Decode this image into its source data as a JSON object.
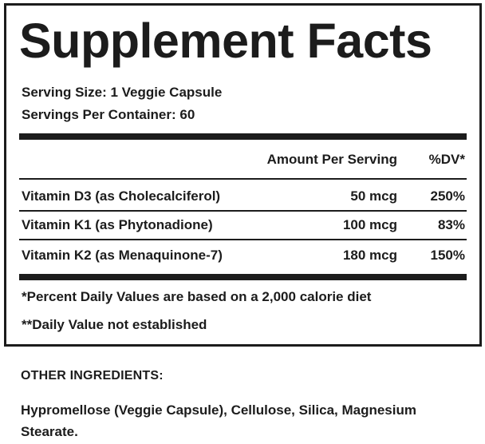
{
  "panel": {
    "title": "Supplement Facts",
    "serving_size": "Serving Size: 1 Veggie Capsule",
    "servings_per_container": "Servings Per Container: 60",
    "header": {
      "amount": "Amount Per Serving",
      "dv": "%DV*"
    },
    "rows": [
      {
        "name": "Vitamin D3 (as Cholecalciferol)",
        "amount": "50 mcg",
        "dv": "250%"
      },
      {
        "name": "Vitamin K1 (as Phytonadione)",
        "amount": "100 mcg",
        "dv": "83%"
      },
      {
        "name": "Vitamin K2 (as Menaquinone-7)",
        "amount": "180 mcg",
        "dv": "150%"
      }
    ],
    "footnotes": [
      "*Percent Daily Values are based on a 2,000 calorie diet",
      "**Daily Value not established"
    ]
  },
  "other_ingredients": {
    "heading": "OTHER INGREDIENTS:",
    "text": "Hypromellose (Veggie Capsule), Cellulose, Silica, Magnesium Stearate."
  }
}
